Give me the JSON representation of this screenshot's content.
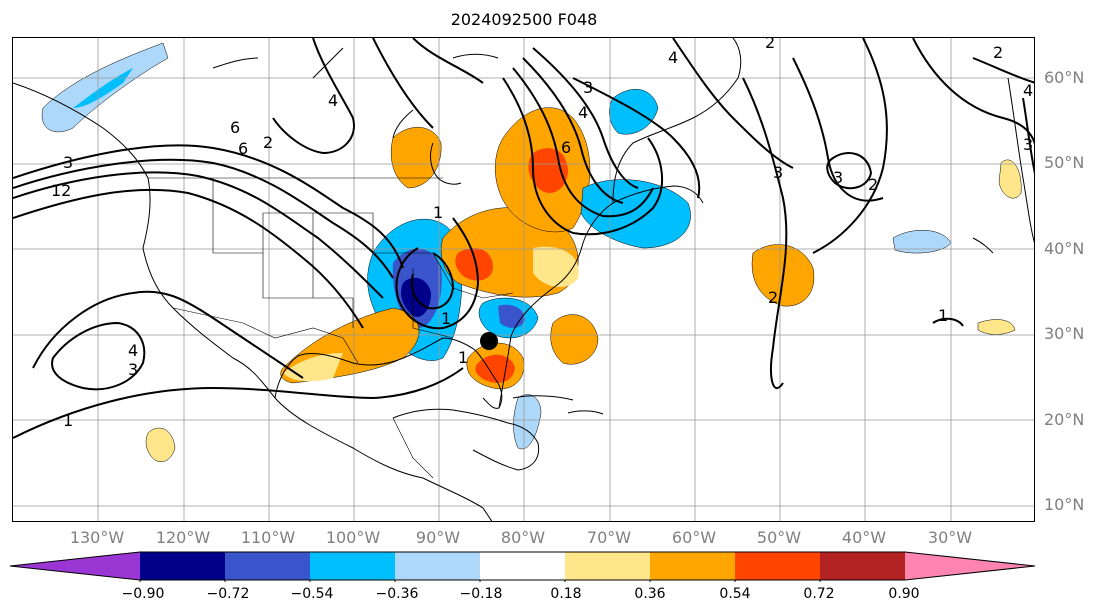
{
  "title": "2024092500 F048",
  "lat_labels": [
    "60°N",
    "50°N",
    "40°N",
    "30°N",
    "20°N",
    "10°N"
  ],
  "lon_labels": [
    "130°W",
    "120°W",
    "110°W",
    "100°W",
    "90°W",
    "80°W",
    "70°W",
    "60°W",
    "50°W",
    "40°W",
    "30°W"
  ],
  "colorbar": {
    "colors": [
      "#9a36d4",
      "#00008b",
      "#3a55cc",
      "#00bfff",
      "#add8fa",
      "#ffffff",
      "#ffe68a",
      "#ffa500",
      "#ff4500",
      "#b22222",
      "#ff85b0"
    ],
    "tick_labels": [
      "−0.90",
      "−0.72",
      "−0.54",
      "−0.36",
      "−0.18",
      "0.18",
      "0.36",
      "0.54",
      "0.72",
      "0.90"
    ]
  },
  "contour_labels": [
    "4",
    "2",
    "6",
    "4",
    "12",
    "3",
    "1",
    "6",
    "6",
    "3",
    "4",
    "3",
    "2",
    "1",
    "3",
    "4",
    "1",
    "2",
    "3",
    "2",
    "1",
    "4",
    "3",
    "1",
    "2"
  ],
  "map": {
    "projection": "PlateCarree",
    "lon_range": [
      "135°W",
      "15°W"
    ],
    "lat_range": [
      "8°N",
      "65°N"
    ],
    "grid": true,
    "marker": "black dot near 85°W 29°N"
  }
}
